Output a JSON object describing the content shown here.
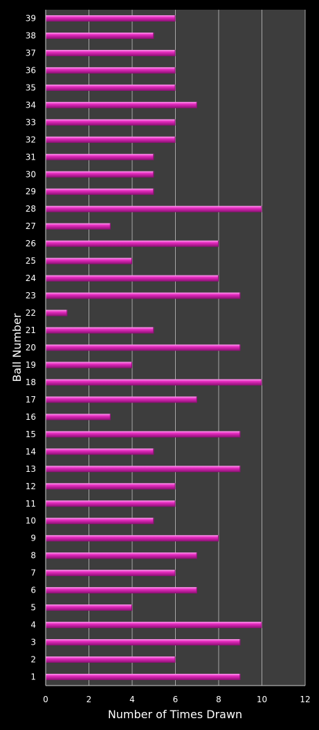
{
  "chart_data": {
    "type": "bar",
    "orientation": "horizontal",
    "title": "",
    "xlabel": "Number of Times Drawn",
    "ylabel": "Ball Number",
    "xlim": [
      0,
      12
    ],
    "xticks": [
      0,
      2,
      4,
      6,
      8,
      10,
      12
    ],
    "grid": true,
    "legend": "none",
    "categories": [
      "1",
      "2",
      "3",
      "4",
      "5",
      "6",
      "7",
      "8",
      "9",
      "10",
      "11",
      "12",
      "13",
      "14",
      "15",
      "16",
      "17",
      "18",
      "19",
      "20",
      "21",
      "22",
      "23",
      "24",
      "25",
      "26",
      "27",
      "28",
      "29",
      "30",
      "31",
      "32",
      "33",
      "34",
      "35",
      "36",
      "37",
      "38",
      "39"
    ],
    "values": [
      9,
      6,
      9,
      10,
      4,
      7,
      6,
      7,
      8,
      5,
      6,
      6,
      9,
      5,
      9,
      3,
      7,
      10,
      4,
      9,
      5,
      1,
      9,
      8,
      4,
      8,
      3,
      10,
      5,
      5,
      5,
      6,
      6,
      7,
      6,
      6,
      6,
      5,
      6
    ],
    "colors": {
      "bar": "#e62cc0",
      "bar_highlight": "#ff9ef0",
      "bar_shadow": "#8a0f72",
      "plot_background": "#3d3d3d",
      "gridline": "#a8a8a8",
      "page_background": "#000000"
    }
  }
}
